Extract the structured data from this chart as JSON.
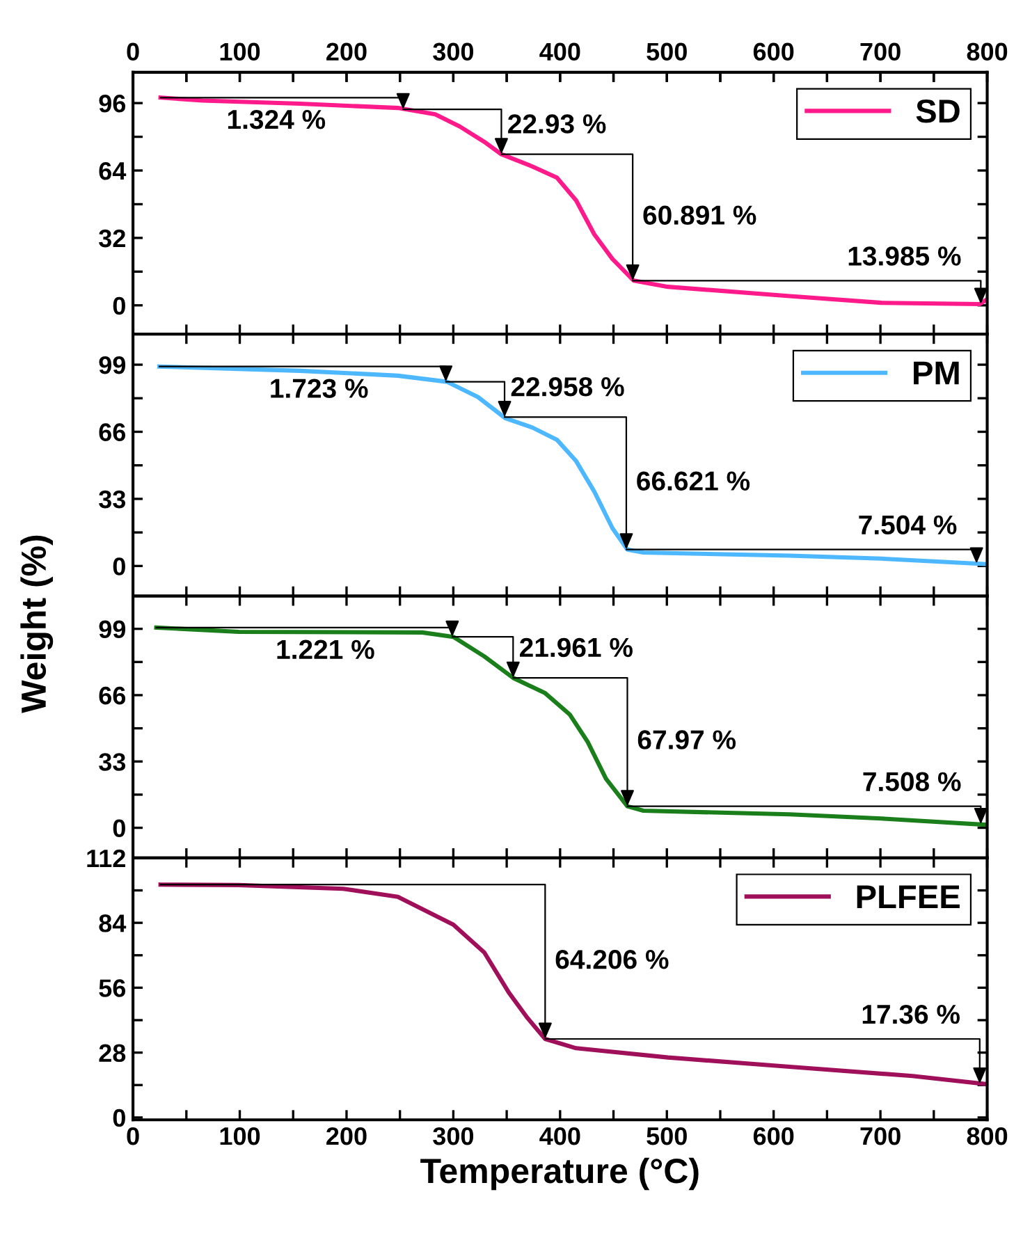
{
  "chart_data": [
    {
      "type": "line",
      "ylabel": "Weight (%)",
      "x2lim": [
        0,
        800
      ],
      "x2ticks": [
        0,
        {
          "value": 50,
          "label": null
        },
        100,
        {
          "value": 150,
          "label": null
        },
        200,
        {
          "value": 250,
          "label": null
        },
        300,
        {
          "value": 350,
          "label": null
        },
        400,
        {
          "value": 450,
          "label": null
        },
        500,
        {
          "value": 550,
          "label": null
        },
        600,
        {
          "value": 650,
          "label": null
        },
        700,
        {
          "value": 750,
          "label": null
        },
        800
      ],
      "xlim": [
        0,
        800
      ],
      "xticks": [
        0,
        {
          "value": 50,
          "label": null
        },
        100,
        {
          "value": 150,
          "label": null
        },
        200,
        {
          "value": 250,
          "label": null
        },
        300,
        {
          "value": 350,
          "label": null
        },
        400,
        {
          "value": 450,
          "label": null
        },
        500,
        {
          "value": 550,
          "label": null
        },
        600,
        {
          "value": 650,
          "label": null
        },
        700,
        {
          "value": 750,
          "label": null
        },
        800
      ],
      "ylim": [
        -13.7,
        110.6
      ],
      "yticks": [
        0,
        {
          "value": 16,
          "label": null
        },
        32,
        {
          "value": 48,
          "label": null
        },
        64,
        {
          "value": 80,
          "label": null
        },
        96
      ],
      "tick_labels": "y",
      "legend": "top right",
      "grid": false,
      "series": [
        {
          "name": "SD",
          "color": "#ff1a8c",
          "x": [
            25.8,
            65,
            156.6,
            248,
            283,
            306,
            329,
            345,
            374,
            397,
            415,
            432,
            449,
            469,
            501,
            615,
            701,
            793,
            800
          ],
          "values": [
            98.6,
            97.2,
            95.7,
            93.7,
            90.7,
            84.9,
            77.6,
            71.7,
            65.9,
            60.6,
            49.8,
            33.7,
            22,
            11.7,
            8.8,
            4.4,
            1.2,
            0.6,
            2.9
          ]
        }
      ],
      "annotations": [
        {
          "text": "1.324 %",
          "x": 253,
          "y": 93
        },
        {
          "text": "22.93 %",
          "x": 345,
          "y": 71.7
        },
        {
          "text": "60.891 %",
          "x": 468,
          "y": 11.7
        },
        {
          "text": "13.985 %",
          "x": 794,
          "y": 0.6
        }
      ]
    },
    {
      "type": "line",
      "xlim": [
        0,
        800
      ],
      "xticks": [
        0,
        {
          "value": 50,
          "label": null
        },
        100,
        {
          "value": 150,
          "label": null
        },
        200,
        {
          "value": 250,
          "label": null
        },
        300,
        {
          "value": 350,
          "label": null
        },
        400,
        {
          "value": 450,
          "label": null
        },
        500,
        {
          "value": 550,
          "label": null
        },
        600,
        {
          "value": 650,
          "label": null
        },
        700,
        {
          "value": 750,
          "label": null
        },
        800
      ],
      "ylim": [
        -14.8,
        114
      ],
      "yticks": [
        0,
        {
          "value": 16.5,
          "label": null
        },
        33,
        {
          "value": 49.5,
          "label": null
        },
        66,
        {
          "value": 82.5,
          "label": null
        },
        99
      ],
      "tick_labels": "y",
      "legend": "top right",
      "grid": false,
      "series": [
        {
          "name": "PM",
          "color": "#4db8ff",
          "x": [
            24.7,
            156.6,
            248,
            294,
            323,
            349,
            374,
            397,
            415,
            432,
            449,
            463,
            478,
            615,
            701,
            799
          ],
          "values": [
            98.1,
            96,
            93.6,
            90.6,
            83.1,
            72.6,
            68.1,
            62.1,
            51.6,
            36.6,
            18.6,
            8.1,
            6.6,
            5.1,
            3.6,
            0.9
          ]
        }
      ],
      "annotations": [
        {
          "text": "1.723 %",
          "x": 293,
          "y": 90.6
        },
        {
          "text": "22.958 %",
          "x": 348,
          "y": 73.2
        },
        {
          "text": "66.621 %",
          "x": 462,
          "y": 8.1
        },
        {
          "text": "7.504 %",
          "x": 790,
          "y": 1.2
        }
      ]
    },
    {
      "type": "line",
      "xlim": [
        0,
        800
      ],
      "xticks": [
        0,
        {
          "value": 50,
          "label": null
        },
        100,
        {
          "value": 150,
          "label": null
        },
        200,
        {
          "value": 250,
          "label": null
        },
        300,
        {
          "value": 350,
          "label": null
        },
        400,
        {
          "value": 450,
          "label": null
        },
        500,
        {
          "value": 550,
          "label": null
        },
        600,
        {
          "value": 650,
          "label": null
        },
        700,
        {
          "value": 750,
          "label": null
        },
        800
      ],
      "ylim": [
        -15,
        115.3
      ],
      "yticks": [
        0,
        {
          "value": 16.5,
          "label": null
        },
        33,
        {
          "value": 49.5,
          "label": null
        },
        66,
        {
          "value": 82.5,
          "label": null
        },
        99
      ],
      "tick_labels": "y",
      "grid": false,
      "series": [
        {
          "color": "#1a7f1a",
          "x": [
            21.8,
            99.2,
            271,
            300,
            329,
            356,
            386,
            409,
            426,
            443,
            463,
            478,
            615,
            701,
            799
          ],
          "values": [
            99.6,
            97.5,
            97.2,
            95,
            85.3,
            74.6,
            67,
            56.4,
            42.6,
            24.4,
            10.7,
            8.5,
            6.7,
            4.6,
            1.5
          ]
        }
      ],
      "annotations": [
        {
          "text": "1.221 %",
          "x": 299,
          "y": 95
        },
        {
          "text": "21.961 %",
          "x": 356,
          "y": 74.6
        },
        {
          "text": "67.97 %",
          "x": 463,
          "y": 10.7
        },
        {
          "text": "7.508 %",
          "x": 794,
          "y": 1.8
        }
      ]
    },
    {
      "type": "line",
      "xlabel": "Temperature (°C)",
      "xlim": [
        0,
        800
      ],
      "xticks": [
        0,
        {
          "value": 50,
          "label": null
        },
        100,
        {
          "value": 150,
          "label": null
        },
        200,
        {
          "value": 250,
          "label": null
        },
        300,
        {
          "value": 350,
          "label": null
        },
        400,
        {
          "value": 450,
          "label": null
        },
        500,
        {
          "value": 550,
          "label": null
        },
        600,
        {
          "value": 650,
          "label": null
        },
        700,
        {
          "value": 750,
          "label": null
        },
        800
      ],
      "ylim": [
        -1,
        112
      ],
      "yticks": [
        0,
        {
          "value": 14,
          "label": null
        },
        28,
        {
          "value": 42,
          "label": null
        },
        56,
        {
          "value": 70,
          "label": null
        },
        84,
        {
          "value": 98,
          "label": null
        },
        112
      ],
      "legend": "top right",
      "grid": false,
      "series": [
        {
          "name": "PLFEE",
          "color": "#a0105a",
          "x": [
            25.8,
            99,
            197,
            248,
            300,
            329,
            352,
            369,
            386,
            415,
            501,
            615,
            730,
            799
          ],
          "values": [
            100.5,
            100.3,
            98.7,
            95.2,
            83.2,
            71.2,
            53.9,
            43.2,
            33.9,
            29.9,
            25.9,
            21.9,
            17.9,
            14.4
          ]
        }
      ],
      "annotations": [
        {
          "text": "64.206 %",
          "x": 386,
          "y": 33.9
        },
        {
          "text": "17.36 %",
          "x": 793,
          "y": 14.6
        }
      ]
    }
  ]
}
